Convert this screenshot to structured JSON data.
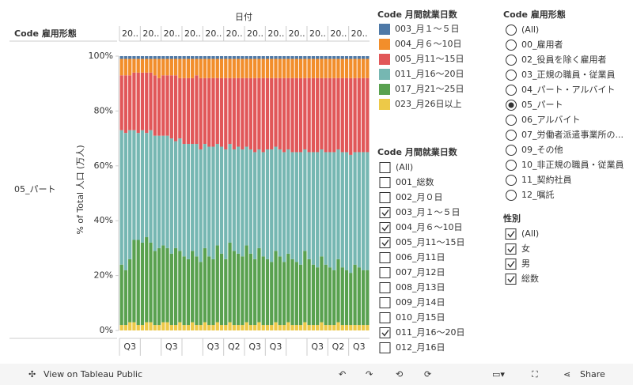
{
  "chart_data": {
    "type": "stacked-bar-100",
    "column_title": "日付",
    "row_header": "Code 雇用形態",
    "row_label": "05_パート",
    "y_label": "% of Total 人口 (万人)",
    "column_headers": [
      "20..",
      "20..",
      "20..",
      "20..",
      "20..",
      "20..",
      "20..",
      "20..",
      "20..",
      "20..",
      "20..",
      "20.."
    ],
    "bottom_labels": [
      "Q3",
      null,
      "Q3",
      null,
      "Q3",
      "Q2",
      "Q3",
      "Q3",
      null,
      "Q3",
      "Q2",
      "Q3"
    ],
    "ylim": [
      0,
      100
    ],
    "yticks": [
      {
        "value": 0,
        "label": "0%"
      },
      {
        "value": 20,
        "label": "20%"
      },
      {
        "value": 40,
        "label": "40%"
      },
      {
        "value": 60,
        "label": "60%"
      },
      {
        "value": 80,
        "label": "80%"
      },
      {
        "value": 100,
        "label": "100%"
      }
    ],
    "legend_title": "Code 月間就業日数",
    "series": [
      {
        "name": "003_月１～５日",
        "color": "#4e79a7",
        "values": [
          1,
          1,
          1,
          1,
          1,
          1,
          1,
          1,
          1,
          1,
          1,
          1,
          1,
          1,
          1,
          1,
          1,
          1,
          1,
          1,
          1,
          1,
          1,
          1,
          1,
          1,
          1,
          1,
          1,
          1,
          1,
          1,
          1,
          1,
          1,
          1,
          1,
          1,
          1,
          1,
          1,
          1,
          1,
          1,
          1,
          1,
          1,
          1,
          1,
          1,
          1,
          1,
          1,
          1,
          1,
          1,
          1,
          1,
          1,
          1
        ]
      },
      {
        "name": "004_月６～10日",
        "color": "#f28e2b",
        "values": [
          6,
          6,
          6,
          5,
          5,
          5,
          5,
          5,
          6,
          7,
          6,
          6,
          6,
          6,
          7,
          7,
          7,
          7,
          6,
          7,
          7,
          7,
          7,
          7,
          7,
          7,
          7,
          7,
          7,
          7,
          7,
          7,
          7,
          7,
          7,
          7,
          7,
          7,
          7,
          7,
          7,
          7,
          7,
          7,
          7,
          7,
          7,
          7,
          7,
          7,
          7,
          7,
          7,
          7,
          7,
          7,
          7,
          7,
          7,
          7
        ]
      },
      {
        "name": "005_月11～15日",
        "color": "#e15759",
        "values": [
          20,
          21,
          20,
          21,
          22,
          21,
          22,
          21,
          22,
          21,
          22,
          22,
          23,
          24,
          22,
          24,
          24,
          24,
          25,
          26,
          24,
          25,
          25,
          24,
          25,
          26,
          24,
          26,
          25,
          26,
          25,
          26,
          27,
          26,
          27,
          26,
          26,
          25,
          26,
          27,
          26,
          27,
          27,
          27,
          26,
          27,
          27,
          27,
          26,
          27,
          27,
          27,
          26,
          27,
          27,
          28,
          27,
          27,
          27,
          27
        ]
      },
      {
        "name": "011_月16～20日",
        "color": "#76b7b2",
        "values": [
          49,
          50,
          47,
          40,
          39,
          41,
          38,
          41,
          42,
          41,
          40,
          41,
          42,
          39,
          41,
          41,
          42,
          39,
          41,
          41,
          38,
          40,
          41,
          37,
          39,
          40,
          36,
          37,
          39,
          39,
          36,
          38,
          39,
          36,
          38,
          40,
          41,
          38,
          39,
          40,
          38,
          39,
          40,
          41,
          37,
          39,
          41,
          42,
          39,
          41,
          42,
          43,
          40,
          42,
          43,
          43,
          41,
          42,
          43,
          43
        ]
      },
      {
        "name": "017_月21～25日",
        "color": "#59a14f",
        "values": [
          22,
          20,
          23,
          30,
          31,
          30,
          31,
          29,
          27,
          28,
          28,
          27,
          26,
          28,
          26,
          25,
          24,
          26,
          25,
          23,
          27,
          25,
          24,
          28,
          26,
          24,
          29,
          27,
          26,
          25,
          28,
          26,
          24,
          27,
          25,
          24,
          23,
          26,
          25,
          23,
          25,
          24,
          23,
          22,
          26,
          24,
          22,
          21,
          24,
          22,
          21,
          20,
          23,
          21,
          20,
          19,
          22,
          21,
          20,
          20
        ]
      },
      {
        "name": "023_月26日以上",
        "color": "#edc948",
        "values": [
          2,
          2,
          3,
          3,
          2,
          2,
          3,
          3,
          2,
          2,
          3,
          3,
          2,
          2,
          3,
          2,
          2,
          3,
          2,
          2,
          3,
          2,
          2,
          3,
          2,
          2,
          3,
          2,
          2,
          2,
          3,
          2,
          2,
          3,
          2,
          2,
          2,
          3,
          2,
          2,
          3,
          2,
          2,
          2,
          3,
          2,
          2,
          2,
          3,
          2,
          2,
          2,
          3,
          2,
          2,
          2,
          2,
          2,
          2,
          2
        ]
      }
    ]
  },
  "filters": [
    {
      "title": "Code 月間就業日数",
      "kind": "check",
      "items": [
        {
          "label": "(All)",
          "checked": false
        },
        {
          "label": "001_総数",
          "checked": false
        },
        {
          "label": "002_月０日",
          "checked": false
        },
        {
          "label": "003_月１～５日",
          "checked": true
        },
        {
          "label": "004_月６～10日",
          "checked": true
        },
        {
          "label": "005_月11～15日",
          "checked": true
        },
        {
          "label": "006_月11日",
          "checked": false
        },
        {
          "label": "007_月12日",
          "checked": false
        },
        {
          "label": "008_月13日",
          "checked": false
        },
        {
          "label": "009_月14日",
          "checked": false
        },
        {
          "label": "010_月15日",
          "checked": false
        },
        {
          "label": "011_月16～20日",
          "checked": true
        },
        {
          "label": "012_月16日",
          "checked": false
        }
      ]
    },
    {
      "title": "Code 雇用形態",
      "kind": "radio",
      "items": [
        {
          "label": "(All)",
          "checked": false
        },
        {
          "label": "00_雇用者",
          "checked": false
        },
        {
          "label": "02_役員を除く雇用者",
          "checked": false
        },
        {
          "label": "03_正規の職員・従業員",
          "checked": false
        },
        {
          "label": "04_パート・アルバイト",
          "checked": false
        },
        {
          "label": "05_パート",
          "checked": true
        },
        {
          "label": "06_アルバイト",
          "checked": false
        },
        {
          "label": "07_労働者派遣事業所の...",
          "checked": false
        },
        {
          "label": "09_その他",
          "checked": false
        },
        {
          "label": "10_非正規の職員・従業員",
          "checked": false
        },
        {
          "label": "11_契約社員",
          "checked": false
        },
        {
          "label": "12_嘱託",
          "checked": false
        }
      ]
    },
    {
      "title": "性別",
      "kind": "check",
      "items": [
        {
          "label": "(All)",
          "checked": true
        },
        {
          "label": "女",
          "checked": true
        },
        {
          "label": "男",
          "checked": true
        },
        {
          "label": "総数",
          "checked": true
        }
      ]
    }
  ],
  "footer": {
    "view": "View on Tableau Public",
    "share": "Share"
  }
}
